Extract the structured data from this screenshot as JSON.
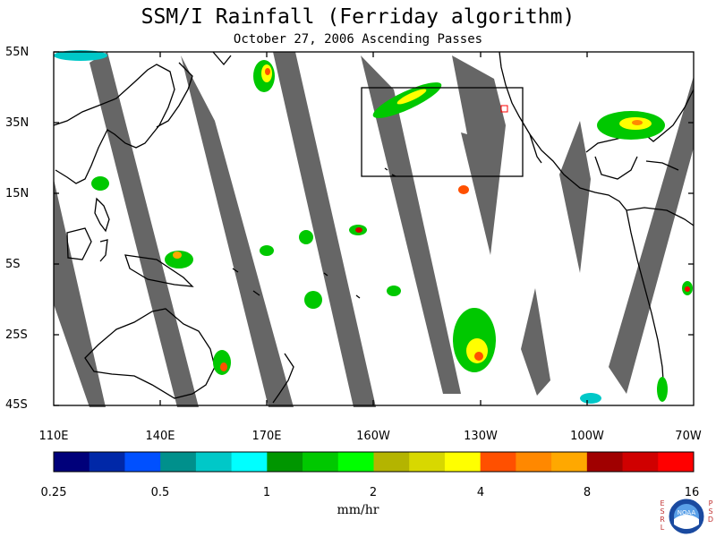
{
  "title": "SSM/I Rainfall (Ferriday algorithm)",
  "subtitle": "October 27, 2006  Ascending Passes",
  "map": {
    "lat_labels": [
      "55N",
      "35N",
      "15N",
      "5S",
      "25S",
      "45S"
    ],
    "lon_labels": [
      "110E",
      "140E",
      "170E",
      "160W",
      "130W",
      "100W",
      "70W"
    ],
    "swath_color": "#666666",
    "land_outline_color": "#000000",
    "highlight_box_color": "#000000",
    "marker_color": "#ff0000"
  },
  "colorbar": {
    "colors": [
      "#00007a",
      "#0028a8",
      "#0050ff",
      "#00908c",
      "#00c8c8",
      "#00ffff",
      "#009600",
      "#00c800",
      "#00ff00",
      "#b4b400",
      "#d8d800",
      "#ffff00",
      "#ff5000",
      "#ff8800",
      "#ffa800",
      "#a00000",
      "#d00000",
      "#ff0000"
    ],
    "tick_labels": [
      "0.25",
      "0.5",
      "1",
      "2",
      "4",
      "8",
      "16"
    ],
    "units": "mm/hr"
  },
  "logo": {
    "left_text": [
      "E",
      "S",
      "R",
      "L"
    ],
    "center_text": "NOAA",
    "right_text": [
      "P",
      "S",
      "D"
    ]
  }
}
